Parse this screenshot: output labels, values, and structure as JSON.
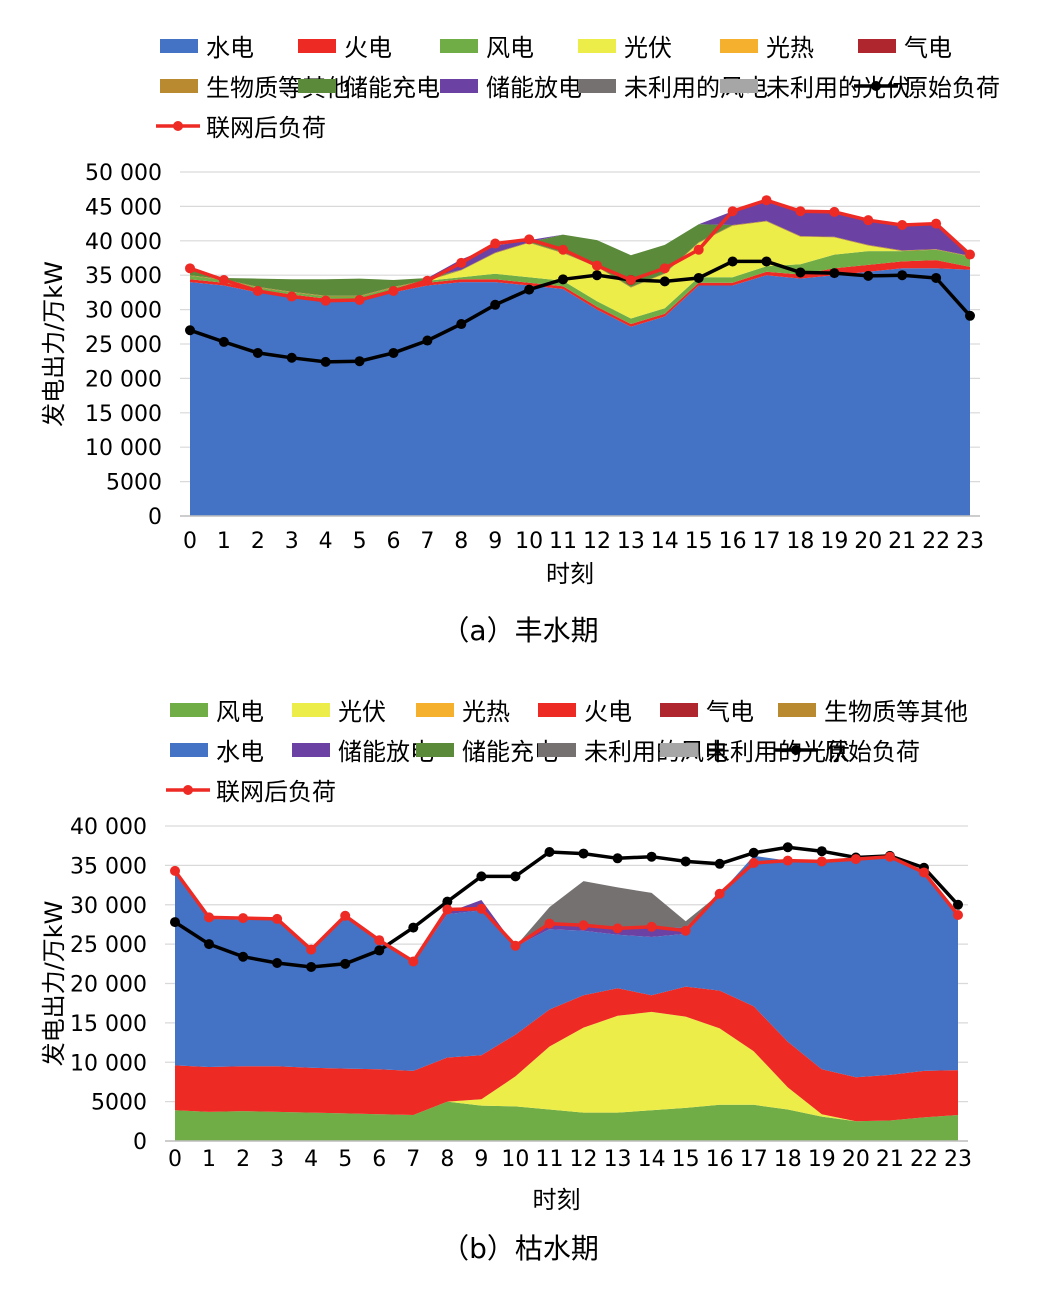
{
  "charts": [
    {
      "caption": "（a）丰水期",
      "chart_data": {
        "type": "area",
        "xlabel": "时刻",
        "ylabel": "发电出力/万kW",
        "ylim": [
          0,
          50000
        ],
        "yticks": [
          "0",
          "5000",
          "10 000",
          "15 000",
          "20 000",
          "25 000",
          "30 000",
          "35 000",
          "40 000",
          "45 000",
          "50 000"
        ],
        "categories": [
          "0",
          "1",
          "2",
          "3",
          "4",
          "5",
          "6",
          "7",
          "8",
          "9",
          "10",
          "11",
          "12",
          "13",
          "14",
          "15",
          "16",
          "17",
          "18",
          "19",
          "20",
          "21",
          "22",
          "23"
        ],
        "stack": [
          {
            "name": "水电",
            "color": "#4472c4",
            "values": [
              34000,
              33500,
              32500,
              31800,
              31200,
              31200,
              32500,
              33500,
              34000,
              34000,
              33500,
              33000,
              30000,
              27500,
              29000,
              33500,
              33500,
              35000,
              34500,
              35000,
              35500,
              36000,
              36000,
              35800
            ]
          },
          {
            "name": "火电",
            "color": "#ee2a24",
            "values": [
              400,
              400,
              400,
              400,
              400,
              400,
              400,
              400,
              400,
              400,
              400,
              400,
              400,
              400,
              400,
              400,
              400,
              500,
              600,
              1000,
              1000,
              1000,
              1200,
              400
            ]
          },
          {
            "name": "风电",
            "color": "#70ad47",
            "values": [
              500,
              400,
              300,
              300,
              300,
              300,
              300,
              300,
              300,
              800,
              800,
              800,
              800,
              800,
              800,
              800,
              800,
              800,
              1500,
              2000,
              2000,
              1500,
              1500,
              1500
            ]
          },
          {
            "name": "光伏",
            "color": "#eded4a",
            "values": [
              0,
              0,
              0,
              0,
              0,
              0,
              0,
              0,
              1000,
              3000,
              5000,
              4000,
              5000,
              4500,
              5000,
              5000,
              7500,
              6500,
              4000,
              2500,
              800,
              0,
              0,
              0
            ]
          },
          {
            "name": "光热",
            "color": "#f5b02d",
            "values": [
              0,
              0,
              0,
              0,
              0,
              0,
              0,
              0,
              0,
              0,
              0,
              0,
              0,
              0,
              0,
              0,
              0,
              0,
              0,
              0,
              0,
              0,
              0,
              0
            ]
          },
          {
            "name": "气电",
            "color": "#b0262e",
            "values": [
              0,
              0,
              0,
              0,
              0,
              0,
              0,
              0,
              0,
              0,
              0,
              0,
              0,
              0,
              0,
              0,
              0,
              0,
              0,
              0,
              0,
              0,
              0,
              0
            ]
          },
          {
            "name": "生物质等其他",
            "color": "#b98a2f",
            "values": [
              100,
              100,
              100,
              100,
              100,
              100,
              100,
              100,
              100,
              100,
              100,
              100,
              100,
              100,
              100,
              100,
              100,
              100,
              100,
              100,
              100,
              100,
              100,
              100
            ]
          },
          {
            "name": "储能充电",
            "color": "#5b8a3a",
            "values": [
              1000,
              200,
              1200,
              1800,
              2400,
              2500,
              1000,
              300,
              0,
              0,
              0,
              2600,
              3800,
              4600,
              4100,
              2600,
              0,
              0,
              0,
              0,
              0,
              0,
              0,
              0
            ]
          },
          {
            "name": "储能放电",
            "color": "#6b42a3",
            "values": [
              0,
              0,
              0,
              0,
              0,
              0,
              0,
              0,
              1500,
              1000,
              300,
              0,
              0,
              0,
              0,
              0,
              2000,
              3000,
              3600,
              3700,
              3500,
              3500,
              3700,
              200
            ]
          },
          {
            "name": "未利用的风电",
            "color": "#767171",
            "values": [
              0,
              0,
              0,
              0,
              0,
              0,
              0,
              0,
              0,
              0,
              0,
              0,
              0,
              0,
              0,
              0,
              0,
              0,
              0,
              0,
              0,
              0,
              0,
              0
            ]
          },
          {
            "name": "未利用的光伏",
            "color": "#a6a6a6",
            "values": [
              0,
              0,
              0,
              0,
              0,
              0,
              0,
              0,
              0,
              0,
              0,
              0,
              0,
              0,
              0,
              0,
              0,
              0,
              0,
              0,
              0,
              0,
              0,
              0
            ]
          }
        ],
        "lines": [
          {
            "name": "原始负荷",
            "color": "#000000",
            "values": [
              27000,
              25300,
              23700,
              23000,
              22400,
              22500,
              23700,
              25500,
              27900,
              30700,
              32900,
              34400,
              35000,
              34300,
              34100,
              34600,
              37000,
              37000,
              35400,
              35300,
              34900,
              35000,
              34600,
              29100
            ]
          },
          {
            "name": "联网后负荷",
            "color": "#ee2a24",
            "values": [
              36000,
              34300,
              32700,
              31900,
              31300,
              31400,
              32700,
              34200,
              36800,
              39600,
              40200,
              38700,
              36400,
              34300,
              36000,
              38700,
              44300,
              45900,
              44300,
              44200,
              43000,
              42300,
              42500,
              38000
            ]
          }
        ],
        "legend_order": [
          "水电",
          "火电",
          "风电",
          "光伏",
          "光热",
          "气电",
          "生物质等其他",
          "储能充电",
          "储能放电",
          "未利用的风电",
          "未利用的光伏",
          "原始负荷",
          "联网后负荷"
        ]
      }
    },
    {
      "caption": "（b）枯水期",
      "chart_data": {
        "type": "area",
        "xlabel": "时刻",
        "ylabel": "发电出力/万kW",
        "ylim": [
          0,
          40000
        ],
        "yticks": [
          "0",
          "5000",
          "10 000",
          "15 000",
          "20 000",
          "25 000",
          "30 000",
          "35 000",
          "40 000"
        ],
        "categories": [
          "0",
          "1",
          "2",
          "3",
          "4",
          "5",
          "6",
          "7",
          "8",
          "9",
          "10",
          "11",
          "12",
          "13",
          "14",
          "15",
          "16",
          "17",
          "18",
          "19",
          "20",
          "21",
          "22",
          "23"
        ],
        "stack": [
          {
            "name": "风电",
            "color": "#70ad47",
            "values": [
              3900,
              3700,
              3800,
              3700,
              3600,
              3500,
              3400,
              3300,
              5000,
              4500,
              4400,
              4000,
              3600,
              3600,
              3900,
              4200,
              4600,
              4600,
              4000,
              3100,
              2500,
              2600,
              3000,
              3300
            ]
          },
          {
            "name": "光伏",
            "color": "#eded4a",
            "values": [
              0,
              0,
              0,
              0,
              0,
              0,
              0,
              0,
              0,
              800,
              3800,
              8000,
              10800,
              12300,
              12500,
              11600,
              9700,
              6800,
              2800,
              300,
              0,
              0,
              0,
              0
            ]
          },
          {
            "name": "光热",
            "color": "#f5b02d",
            "values": [
              0,
              0,
              0,
              0,
              0,
              0,
              0,
              0,
              0,
              0,
              0,
              0,
              0,
              0,
              0,
              0,
              0,
              0,
              0,
              0,
              0,
              0,
              0,
              0
            ]
          },
          {
            "name": "火电",
            "color": "#ee2a24",
            "values": [
              5700,
              5700,
              5700,
              5800,
              5700,
              5700,
              5700,
              5600,
              5600,
              5600,
              5300,
              4700,
              4100,
              3500,
              2100,
              3800,
              4800,
              5700,
              5800,
              5700,
              5600,
              5800,
              5900,
              5700
            ]
          },
          {
            "name": "气电",
            "color": "#b0262e",
            "values": [
              0,
              0,
              0,
              0,
              0,
              0,
              0,
              0,
              0,
              0,
              0,
              0,
              0,
              0,
              0,
              0,
              0,
              0,
              0,
              0,
              0,
              0,
              0,
              0
            ]
          },
          {
            "name": "生物质等其他",
            "color": "#b98a2f",
            "values": [
              0,
              0,
              0,
              0,
              0,
              0,
              0,
              0,
              0,
              0,
              0,
              0,
              0,
              0,
              0,
              0,
              0,
              0,
              0,
              0,
              0,
              0,
              0,
              0
            ]
          },
          {
            "name": "水电",
            "color": "#4472c4",
            "values": [
              24600,
              18800,
              18600,
              18600,
              14900,
              19300,
              16300,
              13800,
              18200,
              18400,
              11200,
              10200,
              8200,
              6800,
              7400,
              6700,
              12300,
              19100,
              23000,
              26300,
              27700,
              27700,
              25400,
              19700
            ]
          },
          {
            "name": "储能放电",
            "color": "#6b42a3",
            "values": [
              0,
              0,
              0,
              0,
              0,
              0,
              0,
              0,
              200,
              1300,
              0,
              800,
              800,
              800,
              1200,
              800,
              0,
              0,
              0,
              0,
              0,
              0,
              0,
              0
            ]
          },
          {
            "name": "储能充电",
            "color": "#5b8a3a",
            "values": [
              0,
              0,
              0,
              0,
              0,
              0,
              0,
              0,
              0,
              0,
              0,
              0,
              0,
              0,
              0,
              0,
              0,
              0,
              0,
              0,
              0,
              0,
              0,
              0
            ]
          },
          {
            "name": "未利用的风电",
            "color": "#767171",
            "values": [
              0,
              0,
              0,
              0,
              0,
              0,
              0,
              0,
              0,
              0,
              0,
              2000,
              5500,
              5200,
              4400,
              800,
              0,
              0,
              0,
              0,
              0,
              0,
              0,
              0
            ]
          },
          {
            "name": "未利用的光伏",
            "color": "#a6a6a6",
            "values": [
              0,
              0,
              0,
              0,
              0,
              0,
              0,
              0,
              0,
              0,
              0,
              0,
              0,
              0,
              0,
              0,
              0,
              0,
              0,
              0,
              0,
              0,
              0,
              0
            ]
          }
        ],
        "lines": [
          {
            "name": "原始负荷",
            "color": "#000000",
            "values": [
              27800,
              25000,
              23400,
              22600,
              22100,
              22500,
              24200,
              27100,
              30400,
              33600,
              33600,
              36700,
              36500,
              35900,
              36100,
              35500,
              35200,
              36600,
              37300,
              36800,
              36000,
              36200,
              34700,
              30000
            ]
          },
          {
            "name": "联网后负荷",
            "color": "#ee2a24",
            "values": [
              34300,
              28400,
              28300,
              28200,
              24300,
              28600,
              25500,
              22800,
              29400,
              29500,
              24800,
              27600,
              27400,
              27000,
              27200,
              26700,
              31400,
              35300,
              35600,
              35500,
              35800,
              36100,
              34100,
              28700
            ]
          }
        ],
        "legend_order": [
          "风电",
          "光伏",
          "光热",
          "火电",
          "气电",
          "生物质等其他",
          "水电",
          "储能放电",
          "储能充电",
          "未利用的风电",
          "未利用的光伏",
          "原始负荷",
          "联网后负荷"
        ]
      }
    }
  ]
}
